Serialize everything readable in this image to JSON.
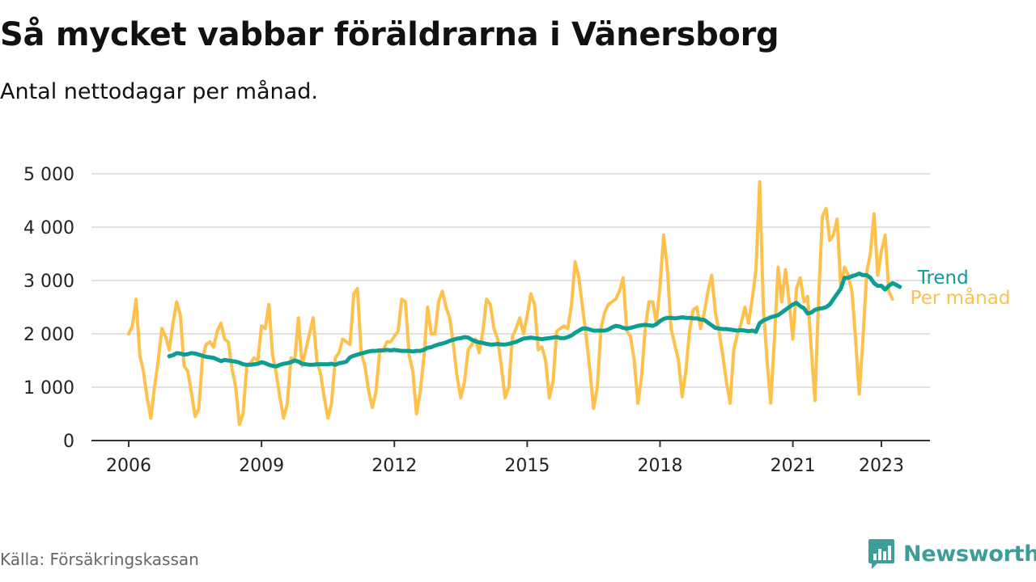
{
  "header": {
    "title": "Så mycket vabbar föräldrarna i Vänersborg",
    "subtitle": "Antal nettodagar per månad."
  },
  "footer": {
    "source": "Källa: Försäkringskassan",
    "brand": "Newsworthy",
    "brand_icon": "bar-chart-speech-bubble-icon"
  },
  "colors": {
    "monthly": "#fdc14c",
    "trend": "#0e9e91",
    "grid": "#d9d9d9",
    "axis": "#333333",
    "brand": "#3d9d98"
  },
  "chart_data": {
    "type": "line",
    "title": "Så mycket vabbar föräldrarna i Vänersborg",
    "subtitle": "Antal nettodagar per månad.",
    "xlabel": "",
    "ylabel": "",
    "ylim": [
      0,
      5000
    ],
    "yticks": [
      0,
      1000,
      2000,
      3000,
      4000,
      5000
    ],
    "ytick_labels": [
      "0",
      "1 000",
      "2 000",
      "3 000",
      "4 000",
      "5 000"
    ],
    "xlim": [
      2006.0,
      2023.75
    ],
    "xticks": [
      2006,
      2009,
      2012,
      2015,
      2018,
      2021,
      2023
    ],
    "xtick_labels": [
      "2006",
      "2009",
      "2012",
      "2015",
      "2018",
      "2021",
      "2023"
    ],
    "grid": true,
    "legend": "inline labels at line ends",
    "series": [
      {
        "name": "Per månad",
        "color": "#fdc14c",
        "start": "2006-01",
        "values": [
          2000,
          2150,
          2650,
          1600,
          1300,
          800,
          420,
          1000,
          1500,
          2100,
          1950,
          1700,
          2200,
          2600,
          2350,
          1400,
          1300,
          900,
          450,
          600,
          1550,
          1800,
          1850,
          1750,
          2050,
          2200,
          1900,
          1850,
          1350,
          1000,
          300,
          500,
          1400,
          1450,
          1550,
          1500,
          2150,
          2100,
          2550,
          1600,
          1250,
          800,
          420,
          700,
          1550,
          1500,
          2300,
          1400,
          1700,
          2000,
          2300,
          1500,
          1250,
          800,
          420,
          700,
          1550,
          1650,
          1900,
          1850,
          1800,
          2750,
          2850,
          1650,
          1400,
          950,
          620,
          900,
          1650,
          1700,
          1850,
          1850,
          1950,
          2050,
          2650,
          2600,
          1600,
          1300,
          500,
          900,
          1550,
          2500,
          2000,
          2000,
          2600,
          2800,
          2500,
          2300,
          1800,
          1200,
          800,
          1100,
          1700,
          1800,
          1900,
          1650,
          2050,
          2650,
          2550,
          2100,
          1900,
          1400,
          800,
          1000,
          1950,
          2100,
          2300,
          2000,
          2350,
          2750,
          2550,
          1700,
          1750,
          1500,
          800,
          1100,
          2050,
          2100,
          2150,
          2100,
          2550,
          3350,
          3050,
          2500,
          1950,
          1300,
          600,
          1000,
          2100,
          2400,
          2550,
          2600,
          2650,
          2800,
          3050,
          2050,
          1950,
          1500,
          700,
          1200,
          2100,
          2600,
          2600,
          2200,
          2900,
          3850,
          3200,
          2100,
          1800,
          1500,
          820,
          1300,
          2050,
          2450,
          2500,
          2100,
          2400,
          2800,
          3100,
          2400,
          2050,
          1600,
          1100,
          700,
          1700,
          2000,
          2200,
          2500,
          2200,
          2650,
          3200,
          4850,
          2500,
          1500,
          700,
          1900,
          3250,
          2600,
          3200,
          2600,
          1900,
          2850,
          3050,
          2600,
          2700,
          1700,
          750,
          2700,
          4200,
          4350,
          3750,
          3850,
          4150,
          2850,
          3250,
          3100,
          2800,
          1900,
          870,
          1900,
          3150,
          3500,
          4250,
          3100,
          3550,
          3850,
          2800,
          2650
        ]
      },
      {
        "name": "Trend",
        "color": "#0e9e91",
        "start": "2006-12",
        "values": [
          1580,
          1600,
          1640,
          1630,
          1610,
          1620,
          1640,
          1630,
          1610,
          1590,
          1570,
          1560,
          1550,
          1520,
          1490,
          1510,
          1500,
          1490,
          1480,
          1460,
          1430,
          1420,
          1420,
          1430,
          1440,
          1470,
          1450,
          1420,
          1400,
          1390,
          1420,
          1440,
          1450,
          1470,
          1500,
          1480,
          1440,
          1430,
          1420,
          1420,
          1430,
          1430,
          1430,
          1430,
          1440,
          1420,
          1450,
          1460,
          1480,
          1560,
          1590,
          1610,
          1630,
          1650,
          1670,
          1680,
          1680,
          1690,
          1690,
          1700,
          1690,
          1700,
          1690,
          1680,
          1680,
          1680,
          1670,
          1680,
          1680,
          1700,
          1740,
          1750,
          1780,
          1800,
          1820,
          1840,
          1870,
          1890,
          1910,
          1920,
          1940,
          1930,
          1890,
          1860,
          1840,
          1830,
          1810,
          1800,
          1800,
          1810,
          1800,
          1800,
          1810,
          1830,
          1850,
          1880,
          1910,
          1920,
          1930,
          1920,
          1910,
          1900,
          1910,
          1920,
          1930,
          1940,
          1920,
          1920,
          1940,
          1970,
          2020,
          2060,
          2100,
          2100,
          2080,
          2060,
          2060,
          2060,
          2060,
          2080,
          2120,
          2150,
          2140,
          2110,
          2100,
          2110,
          2130,
          2150,
          2160,
          2170,
          2160,
          2150,
          2180,
          2240,
          2280,
          2300,
          2300,
          2290,
          2300,
          2310,
          2300,
          2300,
          2290,
          2290,
          2270,
          2260,
          2210,
          2160,
          2110,
          2100,
          2090,
          2090,
          2080,
          2070,
          2060,
          2070,
          2060,
          2050,
          2060,
          2040,
          2200,
          2250,
          2280,
          2310,
          2330,
          2350,
          2400,
          2450,
          2500,
          2550,
          2580,
          2520,
          2480,
          2380,
          2400,
          2450,
          2470,
          2480,
          2500,
          2550,
          2650,
          2750,
          2850,
          3050,
          3050,
          3080,
          3100,
          3130,
          3100,
          3100,
          3050,
          2950,
          2900,
          2900,
          2830,
          2900,
          2950,
          2920,
          2880
        ]
      }
    ]
  }
}
